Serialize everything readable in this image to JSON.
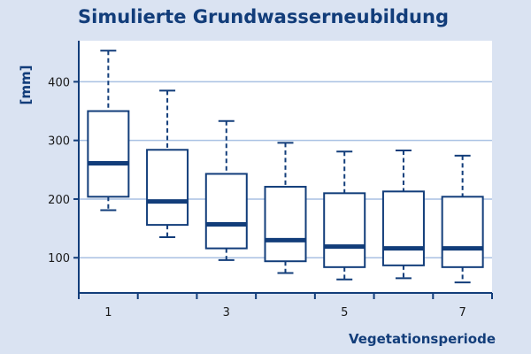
{
  "chart_data": {
    "type": "boxplot",
    "title": "Simulierte Grundwasserneubildung",
    "ylabel": "[mm]",
    "xlabel": "Vegetationsperiode",
    "ylim": [
      40,
      470
    ],
    "yticks": [
      100,
      200,
      300,
      400
    ],
    "categories": [
      1,
      2,
      3,
      4,
      5,
      6,
      7
    ],
    "xtick_labels": [
      "1",
      "",
      "3",
      "",
      "5",
      "",
      "7"
    ],
    "grid": true,
    "series": [
      {
        "boxes": [
          {
            "x": 1,
            "min": 181,
            "q1": 204,
            "median": 261,
            "q3": 350,
            "max": 453
          },
          {
            "x": 2,
            "min": 135,
            "q1": 156,
            "median": 196,
            "q3": 284,
            "max": 385
          },
          {
            "x": 3,
            "min": 96,
            "q1": 116,
            "median": 157,
            "q3": 243,
            "max": 333
          },
          {
            "x": 4,
            "min": 74,
            "q1": 94,
            "median": 130,
            "q3": 221,
            "max": 296
          },
          {
            "x": 5,
            "min": 63,
            "q1": 84,
            "median": 119,
            "q3": 210,
            "max": 281
          },
          {
            "x": 6,
            "min": 65,
            "q1": 87,
            "median": 116,
            "q3": 213,
            "max": 283
          },
          {
            "x": 7,
            "min": 58,
            "q1": 84,
            "median": 116,
            "q3": 204,
            "max": 274
          }
        ]
      }
    ],
    "colors": {
      "background": "#dae3f2",
      "plot_background": "#ffffff",
      "box": "#123d7a",
      "grid": "#a9c1e3",
      "axis": "#123d7a"
    }
  }
}
